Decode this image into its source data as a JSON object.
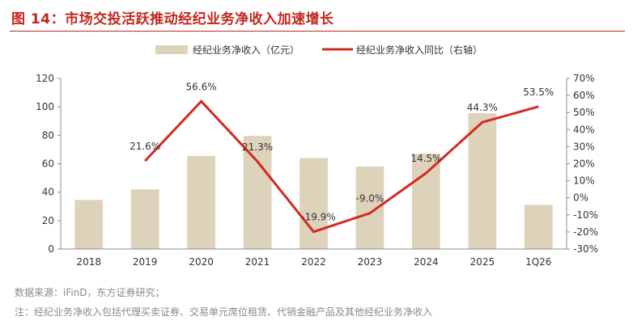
{
  "title": "图 14：市场交投活跃推动经纪业务净收入加速增长",
  "source": "数据来源：iFinD，东方证券研究；",
  "footnote": "注：经纪业务净收入包括代理买卖证券、交易单元席位租赁、代销金融产品及其他经纪业务净收入",
  "colors": {
    "bar": "#ddd2ba",
    "line": "#d42a20",
    "title": "#c0281f"
  },
  "chart_data": {
    "type": "bar",
    "categories": [
      "2018",
      "2019",
      "2020",
      "2021",
      "2022",
      "2023",
      "2024",
      "2025",
      "1Q26"
    ],
    "series": [
      {
        "name": "经纪业务净收入（亿元）",
        "type": "bar",
        "axis": "left",
        "values": [
          34.5,
          42,
          65.5,
          79.5,
          64,
          58,
          67,
          95.5,
          31
        ]
      },
      {
        "name": "经纪业务净收入同比（右轴）",
        "type": "line",
        "axis": "right",
        "values": [
          null,
          21.6,
          56.6,
          21.3,
          -19.9,
          -9.0,
          14.5,
          44.3,
          53.5
        ],
        "labels": [
          "",
          "21.6%",
          "56.6%",
          "21.3%",
          "-19.9%",
          "-9.0%",
          "14.5%",
          "44.3%",
          "53.5%"
        ]
      }
    ],
    "ylim": [
      0,
      120
    ],
    "yticks": [
      "0",
      "20",
      "40",
      "60",
      "80",
      "100",
      "120"
    ],
    "y2lim": [
      -30,
      70
    ],
    "y2ticks": [
      "-30%",
      "-20%",
      "-10%",
      "0%",
      "10%",
      "20%",
      "30%",
      "40%",
      "50%",
      "60%",
      "70%"
    ],
    "legend": "top-center",
    "grid": false
  }
}
